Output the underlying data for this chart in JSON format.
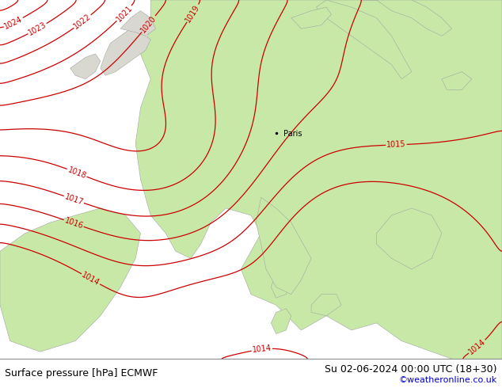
{
  "title_left": "Surface pressure [hPa] ECMWF",
  "title_right": "Su 02-06-2024 00:00 UTC (18+30)",
  "credit": "©weatheronline.co.uk",
  "bg_white": "#ffffff",
  "sea_color": "#d8d8d0",
  "land_color": "#c8e8a8",
  "contour_color": "#cc0000",
  "land_edge_color": "#a0a8a0",
  "label_fontsize": 7,
  "title_fontsize": 9,
  "credit_fontsize": 8,
  "figsize": [
    6.34,
    4.9
  ],
  "dpi": 100
}
